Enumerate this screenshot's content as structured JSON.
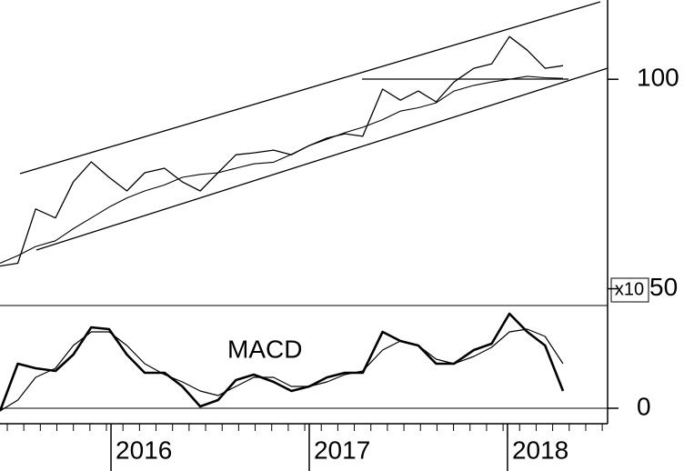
{
  "chart_data": [
    {
      "type": "line",
      "log_scale": true,
      "axis_multiplier": "x10",
      "x": [
        2015.44,
        2015.53,
        2015.62,
        2015.72,
        2015.81,
        2015.9,
        2015.99,
        2016.08,
        2016.17,
        2016.27,
        2016.36,
        2016.45,
        2016.54,
        2016.63,
        2016.72,
        2016.82,
        2016.91,
        2017.0,
        2017.09,
        2017.18,
        2017.27,
        2017.37,
        2017.46,
        2017.55,
        2017.64,
        2017.73,
        2017.83,
        2017.92,
        2018.01,
        2018.1,
        2018.19,
        2018.28
      ],
      "xlim": [
        2015.44,
        2018.505
      ],
      "ylim": [
        47.3,
        130
      ],
      "yticks": [
        100,
        50
      ],
      "series": [
        {
          "color": "#000000",
          "values": [
            53.9,
            54.4,
            65.1,
            63.2,
            71.2,
            76.1,
            72.3,
            69.1,
            73.4,
            74.5,
            71.2,
            69.1,
            73.4,
            77.9,
            78.4,
            79.1,
            77.9,
            80.3,
            82.3,
            83.5,
            82.8,
            96.8,
            93.3,
            96.2,
            92.8,
            99.1,
            103.7,
            105.2,
            115.2,
            110.1,
            103.7,
            104.6
          ]
        },
        {
          "color": "#000000",
          "values": [
            54.4,
            55.8,
            57.5,
            58.6,
            61,
            63.2,
            65.5,
            67.5,
            69.1,
            70.5,
            72.3,
            73,
            73.4,
            74.5,
            75.6,
            76,
            78,
            80.3,
            82,
            83.8,
            85.3,
            87.5,
            90,
            91,
            92.5,
            96.2,
            98,
            99.1,
            100,
            101,
            100.5,
            100.3
          ]
        }
      ]
    },
    {
      "type": "line",
      "annotation": "MACD",
      "x": [
        2015.44,
        2015.53,
        2015.62,
        2015.72,
        2015.81,
        2015.9,
        2015.99,
        2016.08,
        2016.17,
        2016.27,
        2016.36,
        2016.45,
        2016.54,
        2016.63,
        2016.72,
        2016.82,
        2016.91,
        2017.0,
        2017.09,
        2017.18,
        2017.27,
        2017.37,
        2017.46,
        2017.55,
        2017.64,
        2017.73,
        2017.83,
        2017.92,
        2018.01,
        2018.1,
        2018.19,
        2018.28
      ],
      "xlim": [
        2015.44,
        2018.505
      ],
      "xticks": [
        2016,
        2017,
        2018
      ],
      "ylim": [
        -0.85,
        5.65
      ],
      "yticks": [
        0
      ],
      "series": [
        {
          "color": "#000000",
          "values": [
            -0.15,
            2.45,
            2.2,
            2.05,
            2.95,
            4.45,
            4.35,
            2.95,
            1.95,
            1.95,
            1.2,
            0.1,
            0.45,
            1.55,
            1.85,
            1.45,
            0.95,
            1.2,
            1.7,
            1.95,
            1.95,
            4.2,
            3.7,
            3.45,
            2.45,
            2.45,
            3.2,
            3.55,
            5.2,
            4.2,
            3.45,
            0.95
          ]
        },
        {
          "color": "#000000",
          "values": [
            -0.15,
            0.45,
            1.7,
            2.2,
            3.45,
            4.2,
            4.2,
            3.45,
            2.45,
            1.85,
            1.45,
            0.95,
            0.7,
            1.2,
            1.7,
            1.7,
            1.2,
            1.2,
            1.45,
            1.85,
            2.05,
            3.2,
            3.7,
            3.45,
            2.7,
            2.45,
            2.85,
            3.35,
            4.2,
            4.35,
            3.95,
            2.45
          ]
        }
      ]
    }
  ]
}
